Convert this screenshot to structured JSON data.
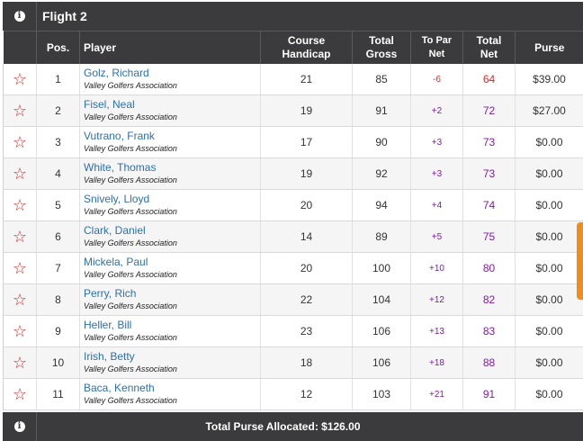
{
  "flight": {
    "title": "Flight 2",
    "info_icon": "info-icon"
  },
  "columns": {
    "pos": "Pos.",
    "player": "Player",
    "handicap_line1": "Course",
    "handicap_line2": "Handicap",
    "gross_line1": "Total",
    "gross_line2": "Gross",
    "topar_line1": "To Par",
    "topar_line2": "Net",
    "net_line1": "Total",
    "net_line2": "Net",
    "purse": "Purse"
  },
  "rows": [
    {
      "pos": "1",
      "name": "Golz, Richard",
      "assoc": "Valley Golfers Association",
      "handicap": "21",
      "gross": "85",
      "topar": "-6",
      "net": "64",
      "purse": "$39.00"
    },
    {
      "pos": "2",
      "name": "Fisel, Neal",
      "assoc": "Valley Golfers Association",
      "handicap": "19",
      "gross": "91",
      "topar": "+2",
      "net": "72",
      "purse": "$27.00"
    },
    {
      "pos": "3",
      "name": "Vutrano, Frank",
      "assoc": "Valley Golfers Association",
      "handicap": "17",
      "gross": "90",
      "topar": "+3",
      "net": "73",
      "purse": "$0.00"
    },
    {
      "pos": "4",
      "name": "White, Thomas",
      "assoc": "Valley Golfers Association",
      "handicap": "19",
      "gross": "92",
      "topar": "+3",
      "net": "73",
      "purse": "$0.00"
    },
    {
      "pos": "5",
      "name": "Snively, Lloyd",
      "assoc": "Valley Golfers Association",
      "handicap": "20",
      "gross": "94",
      "topar": "+4",
      "net": "74",
      "purse": "$0.00"
    },
    {
      "pos": "6",
      "name": "Clark, Daniel",
      "assoc": "Valley Golfers Association",
      "handicap": "14",
      "gross": "89",
      "topar": "+5",
      "net": "75",
      "purse": "$0.00"
    },
    {
      "pos": "7",
      "name": "Mickela, Paul",
      "assoc": "Valley Golfers Association",
      "handicap": "20",
      "gross": "100",
      "topar": "+10",
      "net": "80",
      "purse": "$0.00"
    },
    {
      "pos": "8",
      "name": "Perry, Rich",
      "assoc": "Valley Golfers Association",
      "handicap": "22",
      "gross": "104",
      "topar": "+12",
      "net": "82",
      "purse": "$0.00"
    },
    {
      "pos": "9",
      "name": "Heller, Bill",
      "assoc": "Valley Golfers Association",
      "handicap": "23",
      "gross": "106",
      "topar": "+13",
      "net": "83",
      "purse": "$0.00"
    },
    {
      "pos": "10",
      "name": "Irish, Betty",
      "assoc": "Valley Golfers Association",
      "handicap": "18",
      "gross": "106",
      "topar": "+18",
      "net": "88",
      "purse": "$0.00"
    },
    {
      "pos": "11",
      "name": "Baca, Kenneth",
      "assoc": "Valley Golfers Association",
      "handicap": "12",
      "gross": "103",
      "topar": "+21",
      "net": "91",
      "purse": "$0.00"
    }
  ],
  "footer": {
    "total_purse": "Total Purse Allocated: $126.00"
  },
  "colors": {
    "header_bg": "#3b3b3d",
    "star": "#d32f2f",
    "player_link": "#2f6fa8",
    "under_par": "#d32f2f",
    "over_par": "#7b1fa2",
    "side_tab": "#f08c1a"
  }
}
